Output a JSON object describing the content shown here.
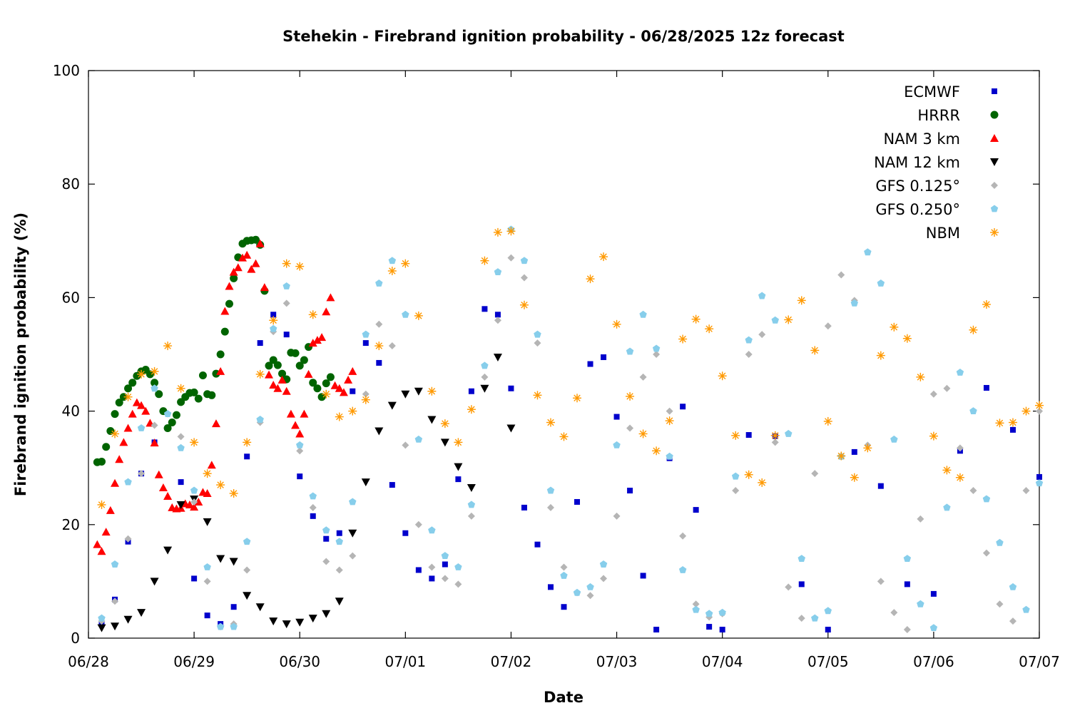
{
  "chart_data": {
    "type": "scatter",
    "title": "Stehekin - Firebrand ignition probability - 06/28/2025 12z forecast",
    "xlabel": "Date",
    "ylabel": "Firebrand ignition probability (%)",
    "xlim": [
      "06/28 00:00",
      "07/07 00:00"
    ],
    "ylim": [
      0,
      100
    ],
    "x_ticks": [
      "06/28",
      "06/29",
      "06/30",
      "07/01",
      "07/02",
      "07/03",
      "07/04",
      "07/05",
      "07/06",
      "07/07"
    ],
    "y_ticks": [
      0,
      20,
      40,
      60,
      80,
      100
    ],
    "grid": false,
    "legend_position": "top-right",
    "x_unit": "hours after 06/28 00:00",
    "series": [
      {
        "name": "ECMWF",
        "marker": "square",
        "color": "#0000cc",
        "x": [
          3,
          6,
          9,
          12,
          15,
          18,
          21,
          24,
          27,
          30,
          33,
          36,
          39,
          42,
          45,
          48,
          51,
          54,
          57,
          60,
          63,
          66,
          69,
          72,
          75,
          78,
          81,
          84,
          87,
          90,
          93,
          96,
          99,
          102,
          105,
          108,
          111,
          114,
          117,
          120,
          123,
          126,
          129,
          132,
          135,
          138,
          141,
          144,
          150,
          156,
          162,
          168,
          174,
          180,
          186,
          192,
          198,
          204,
          210,
          216
        ],
        "y": [
          2.5,
          6.8,
          17,
          29,
          34.5,
          37,
          27.5,
          10.5,
          4,
          2.5,
          5.5,
          32,
          52,
          57,
          53.5,
          28.5,
          21.5,
          17.5,
          18.5,
          43.5,
          52,
          48.5,
          27,
          18.5,
          12,
          10.5,
          13,
          28,
          43.5,
          58,
          57,
          44,
          23,
          16.5,
          9,
          5.5,
          24,
          48.3,
          49.5,
          39,
          26,
          11,
          1.5,
          31.7,
          40.8,
          22.6,
          2,
          1.5,
          35.8,
          35.6,
          9.5,
          1.5,
          32.8,
          26.8,
          9.5,
          7.8,
          33,
          44.1,
          36.7,
          28.4
        ]
      },
      {
        "name": "HRRR",
        "marker": "circle",
        "color": "#006400",
        "x": [
          2,
          3,
          4,
          5,
          6,
          7,
          8,
          9,
          10,
          11,
          12,
          13,
          14,
          15,
          16,
          17,
          18,
          19,
          20,
          21,
          22,
          23,
          24,
          25,
          26,
          27,
          28,
          29,
          30,
          31,
          32,
          33,
          34,
          35,
          36,
          37,
          38,
          39,
          40,
          41,
          42,
          43,
          44,
          45,
          46,
          47,
          48,
          49,
          50,
          51,
          52,
          53,
          54,
          55
        ],
        "y": [
          31,
          31.1,
          33.7,
          36.5,
          39.5,
          41.5,
          42.5,
          44,
          45,
          46.2,
          47,
          47.3,
          46.5,
          45,
          43,
          40,
          37,
          38,
          39.3,
          41.6,
          42.5,
          43.2,
          43.3,
          42.2,
          46.3,
          43,
          42.8,
          46.6,
          50,
          54,
          58.9,
          63.4,
          67.1,
          69.5,
          70,
          70.1,
          70.2,
          69.3,
          61.2,
          48,
          49,
          48.1,
          46.6,
          45.6,
          50.3,
          50.2,
          48,
          49,
          51.3,
          45,
          44,
          42.5,
          44.9,
          46
        ]
      },
      {
        "name": "NAM 3 km",
        "marker": "triangle-up",
        "color": "#ff0000",
        "x": [
          2,
          3,
          4,
          5,
          6,
          7,
          8,
          9,
          10,
          11,
          12,
          13,
          14,
          15,
          16,
          17,
          18,
          19,
          20,
          21,
          22,
          23,
          24,
          25,
          26,
          27,
          28,
          29,
          30,
          31,
          32,
          33,
          34,
          35,
          36,
          37,
          38,
          39,
          40,
          41,
          42,
          43,
          44,
          45,
          46,
          47,
          48,
          49,
          50,
          51,
          52,
          53,
          54,
          55,
          56,
          57,
          58,
          59,
          60
        ],
        "y": [
          16.5,
          15.3,
          18.7,
          22.5,
          27.3,
          31.5,
          34.5,
          37,
          39.5,
          41.5,
          41,
          40,
          37.9,
          34.4,
          28.8,
          26.5,
          25,
          23,
          22.8,
          22.9,
          23.7,
          23.5,
          23.1,
          24,
          25.7,
          25.5,
          30.5,
          37.8,
          47,
          57.6,
          62,
          64.5,
          65.3,
          67,
          67.5,
          65,
          66,
          69.5,
          61.8,
          46.4,
          44.6,
          44,
          45.5,
          43.5,
          39.5,
          37.5,
          36,
          39.5,
          46.5,
          52,
          52.5,
          53,
          57.5,
          60,
          44.5,
          44,
          43.3,
          45.5,
          47
        ]
      },
      {
        "name": "NAM 12 km",
        "marker": "triangle-down",
        "color": "#000000",
        "x": [
          3,
          6,
          9,
          12,
          15,
          18,
          21,
          24,
          27,
          30,
          33,
          36,
          39,
          42,
          45,
          48,
          51,
          54,
          57,
          60,
          63,
          66,
          69,
          72,
          75,
          78,
          81,
          84,
          87,
          90,
          93,
          96
        ],
        "y": [
          1.8,
          2.1,
          3.3,
          4.5,
          10,
          15.5,
          23.5,
          24.5,
          20.5,
          14,
          13.5,
          7.5,
          5.5,
          3,
          2.5,
          2.8,
          3.5,
          4.3,
          6.5,
          18.5,
          27.5,
          36.5,
          41,
          43,
          43.5,
          38.5,
          34.5,
          30.2,
          26.5,
          44,
          49.5,
          37
        ]
      },
      {
        "name": "GFS 0.125°",
        "marker": "diamond",
        "color": "#b5b5b5",
        "x": [
          3,
          6,
          9,
          12,
          15,
          18,
          21,
          24,
          27,
          30,
          33,
          36,
          39,
          42,
          45,
          48,
          51,
          54,
          57,
          60,
          63,
          66,
          69,
          72,
          75,
          78,
          81,
          84,
          87,
          90,
          93,
          96,
          99,
          102,
          105,
          108,
          111,
          114,
          117,
          120,
          123,
          126,
          129,
          132,
          135,
          138,
          141,
          144,
          147,
          150,
          153,
          156,
          159,
          162,
          165,
          168,
          171,
          174,
          177,
          180,
          183,
          186,
          189,
          192,
          195,
          198,
          201,
          204,
          207,
          210,
          213,
          216
        ],
        "y": [
          3,
          6.5,
          17.5,
          29,
          37.5,
          39.5,
          35.5,
          24,
          10,
          2,
          2.5,
          12,
          38,
          54,
          59,
          33,
          23,
          13.5,
          12,
          14.5,
          43,
          55.3,
          51.5,
          34,
          20,
          12.5,
          10.5,
          9.5,
          21.5,
          46,
          56,
          67,
          63.5,
          52,
          23,
          12.5,
          8,
          7.5,
          10.5,
          21.5,
          37,
          46,
          50,
          40,
          18,
          6,
          3.7,
          4.3,
          26,
          50,
          53.5,
          34.5,
          9,
          3.5,
          29,
          55,
          64,
          59.5,
          34,
          10,
          4.5,
          1.5,
          21,
          43,
          44,
          33.5,
          26,
          15,
          6,
          3,
          26,
          40
        ]
      },
      {
        "name": "GFS 0.250°",
        "marker": "pentagon",
        "color": "#87ceeb",
        "x": [
          3,
          6,
          9,
          12,
          15,
          18,
          21,
          24,
          27,
          30,
          33,
          36,
          39,
          42,
          45,
          48,
          51,
          54,
          57,
          60,
          63,
          66,
          69,
          72,
          75,
          78,
          81,
          84,
          87,
          90,
          93,
          96,
          99,
          102,
          105,
          108,
          111,
          114,
          117,
          120,
          123,
          126,
          129,
          132,
          135,
          138,
          141,
          144,
          147,
          150,
          153,
          156,
          159,
          162,
          165,
          168,
          171,
          174,
          177,
          180,
          183,
          186,
          189,
          192,
          195,
          198,
          201,
          204,
          207,
          210,
          213,
          216
        ],
        "y": [
          3.5,
          13,
          27.5,
          37,
          44,
          39.5,
          33.5,
          26,
          12.5,
          2,
          2,
          17,
          38.5,
          54.5,
          62,
          34,
          25,
          19,
          17,
          24,
          53.5,
          62.5,
          66.5,
          57,
          35,
          19,
          14.5,
          12.5,
          23.5,
          48,
          64.5,
          72,
          66.5,
          53.5,
          26,
          11,
          8,
          9,
          13,
          34,
          50.5,
          57,
          51,
          32,
          12,
          5,
          4.3,
          4.5,
          28.5,
          52.5,
          60.3,
          56,
          36,
          14,
          3.5,
          4.8,
          32,
          59,
          68,
          62.5,
          35,
          14,
          6,
          1.8,
          23,
          46.8,
          40,
          24.5,
          16.8,
          9,
          5,
          27.3
        ]
      },
      {
        "name": "NBM",
        "marker": "asterisk",
        "color": "#ff9900",
        "x": [
          3,
          6,
          9,
          12,
          15,
          18,
          21,
          24,
          27,
          30,
          33,
          36,
          39,
          42,
          45,
          48,
          51,
          54,
          57,
          60,
          63,
          66,
          69,
          72,
          75,
          78,
          81,
          84,
          87,
          90,
          93,
          96,
          99,
          102,
          105,
          108,
          111,
          114,
          117,
          120,
          123,
          126,
          129,
          132,
          135,
          138,
          141,
          144,
          147,
          150,
          153,
          156,
          159,
          162,
          165,
          168,
          171,
          174,
          177,
          180,
          183,
          186,
          189,
          192,
          195,
          198,
          201,
          204,
          207,
          210,
          213,
          216
        ],
        "y": [
          23.5,
          36,
          42.5,
          46.5,
          47,
          51.5,
          44,
          34.5,
          29,
          27,
          25.5,
          34.5,
          46.5,
          56,
          66,
          65.5,
          57,
          43,
          39,
          40,
          42,
          51.5,
          64.7,
          66,
          56.8,
          43.5,
          37.8,
          34.5,
          40.3,
          66.5,
          71.5,
          71.7,
          58.7,
          42.8,
          38,
          35.5,
          42.3,
          63.3,
          67.2,
          55.3,
          42.6,
          36,
          33,
          38.3,
          52.7,
          56.2,
          54.5,
          46.2,
          35.7,
          28.8,
          27.4,
          35.7,
          56.1,
          59.5,
          50.7,
          38.2,
          32.1,
          28.3,
          33.5,
          49.8,
          54.8,
          52.8,
          46,
          35.6,
          29.6,
          28.3,
          54.3,
          58.8,
          37.9,
          38,
          40,
          41
        ]
      }
    ]
  }
}
